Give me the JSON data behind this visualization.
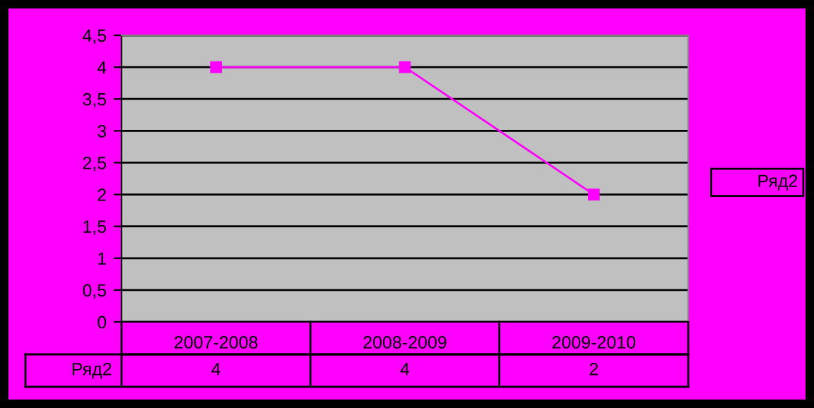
{
  "chart_data": {
    "type": "line",
    "categories": [
      "2007-2008",
      "2008-2009",
      "2009-2010"
    ],
    "series": [
      {
        "name": "Ряд2",
        "color": "#ff00ff",
        "values": [
          4,
          4,
          2
        ]
      }
    ],
    "ylim": [
      0,
      4.5
    ],
    "yticks": [
      0,
      {
        "value": 0.5,
        "label": "0,5"
      },
      1,
      {
        "value": 1.5,
        "label": "1,5"
      },
      2,
      {
        "value": 2.5,
        "label": "2,5"
      },
      3,
      {
        "value": 3.5,
        "label": "3,5"
      },
      4,
      {
        "value": 4.5,
        "label": "4,5"
      }
    ],
    "grid": "y",
    "legend": "right",
    "marker": "square",
    "line_style": "solid",
    "data_labels": true
  }
}
